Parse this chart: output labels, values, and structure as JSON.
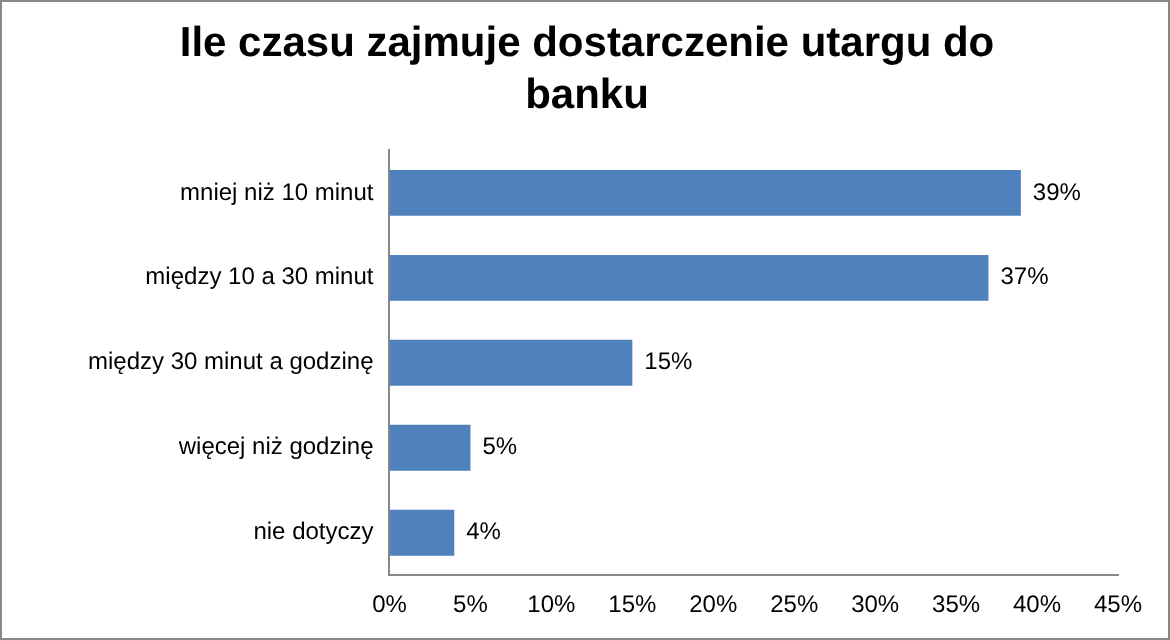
{
  "chart_data": {
    "type": "bar",
    "orientation": "horizontal",
    "title": "Ile czasu zajmuje dostarczenie utargu do banku",
    "categories": [
      "mniej niż 10 minut",
      "między 10 a 30 minut",
      "między 30 minut a godzinę",
      "więcej niż godzinę",
      "nie dotyczy"
    ],
    "values": [
      39,
      37,
      15,
      5,
      4
    ],
    "color": "#4f81bd",
    "value_labels": [
      "39%",
      "37%",
      "15%",
      "5%",
      "4%"
    ],
    "xlim": [
      0,
      45
    ],
    "xticks": [
      {
        "value": 0,
        "label": "0%"
      },
      {
        "value": 5,
        "label": "5%"
      },
      {
        "value": 10,
        "label": "10%"
      },
      {
        "value": 15,
        "label": "15%"
      },
      {
        "value": 20,
        "label": "20%"
      },
      {
        "value": 25,
        "label": "25%"
      },
      {
        "value": 30,
        "label": "30%"
      },
      {
        "value": 35,
        "label": "35%"
      },
      {
        "value": 40,
        "label": "40%"
      },
      {
        "value": 45,
        "label": "45%"
      }
    ],
    "grid": false,
    "legend": false
  }
}
